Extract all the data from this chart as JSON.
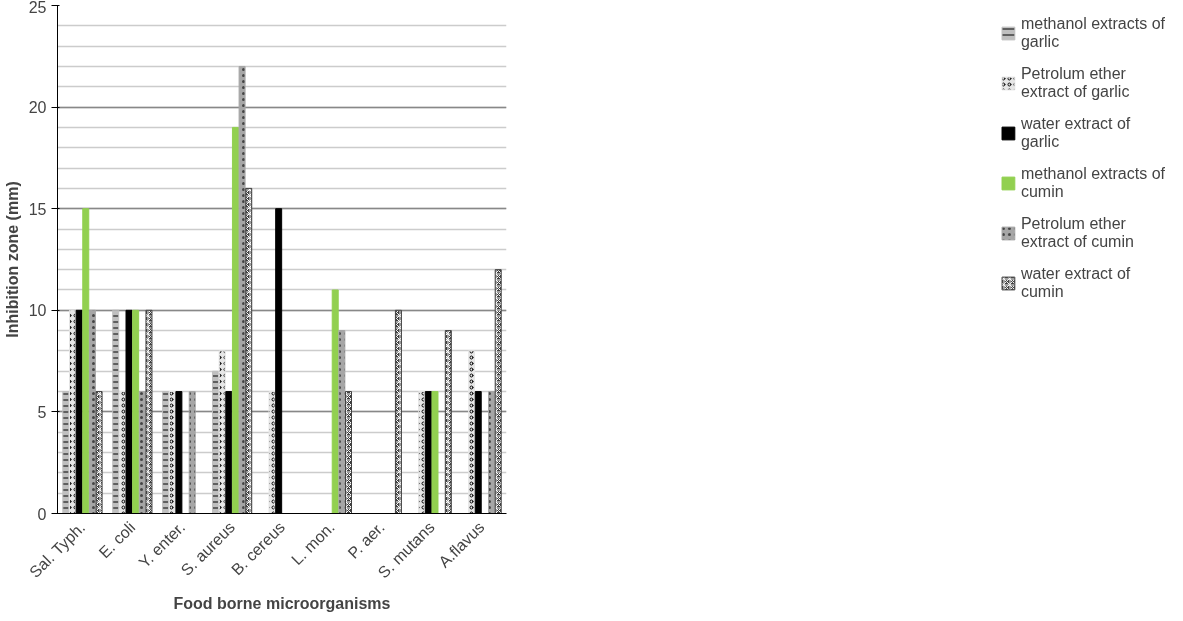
{
  "chart_data": {
    "type": "bar",
    "xlabel": "Food borne microorganisms",
    "ylabel": "Inhibition zone (mm)",
    "categories": [
      "Sal. Typh.",
      "E. coli",
      "Y. enter.",
      "S. aureus",
      "B. cereus",
      "L. mon.",
      "P. aer.",
      "S. mutans",
      "A.flavus"
    ],
    "series": [
      {
        "name": "methanol extracts of garlic",
        "color": "#bfbfbf",
        "values": [
          6,
          10,
          6,
          7,
          0,
          0,
          0,
          0,
          0
        ]
      },
      {
        "name": "Petrolum ether extract of garlic",
        "color": "#e6e6e6",
        "values": [
          10,
          6,
          6,
          8,
          6,
          0,
          0,
          6,
          8
        ]
      },
      {
        "name": "water extract of garlic",
        "color": "#000000",
        "values": [
          10,
          10,
          6,
          6,
          15,
          0,
          0,
          6,
          6
        ]
      },
      {
        "name": "methanol extracts of cumin",
        "color": "#92d050",
        "values": [
          15,
          10,
          0,
          19,
          0,
          11,
          0,
          6,
          0
        ]
      },
      {
        "name": "Petrolum ether extract of cumin",
        "color": "#a6a6a6",
        "values": [
          10,
          6,
          6,
          22,
          0,
          9,
          0,
          0,
          6
        ]
      },
      {
        "name": "water extract of cumin",
        "color": "#404040",
        "values": [
          6,
          10,
          0,
          16,
          0,
          6,
          10,
          9,
          12
        ]
      }
    ],
    "ylim": [
      0,
      25
    ],
    "yticks": [
      0,
      5,
      10,
      15,
      20,
      25
    ],
    "grid": "y",
    "legend": "right"
  }
}
